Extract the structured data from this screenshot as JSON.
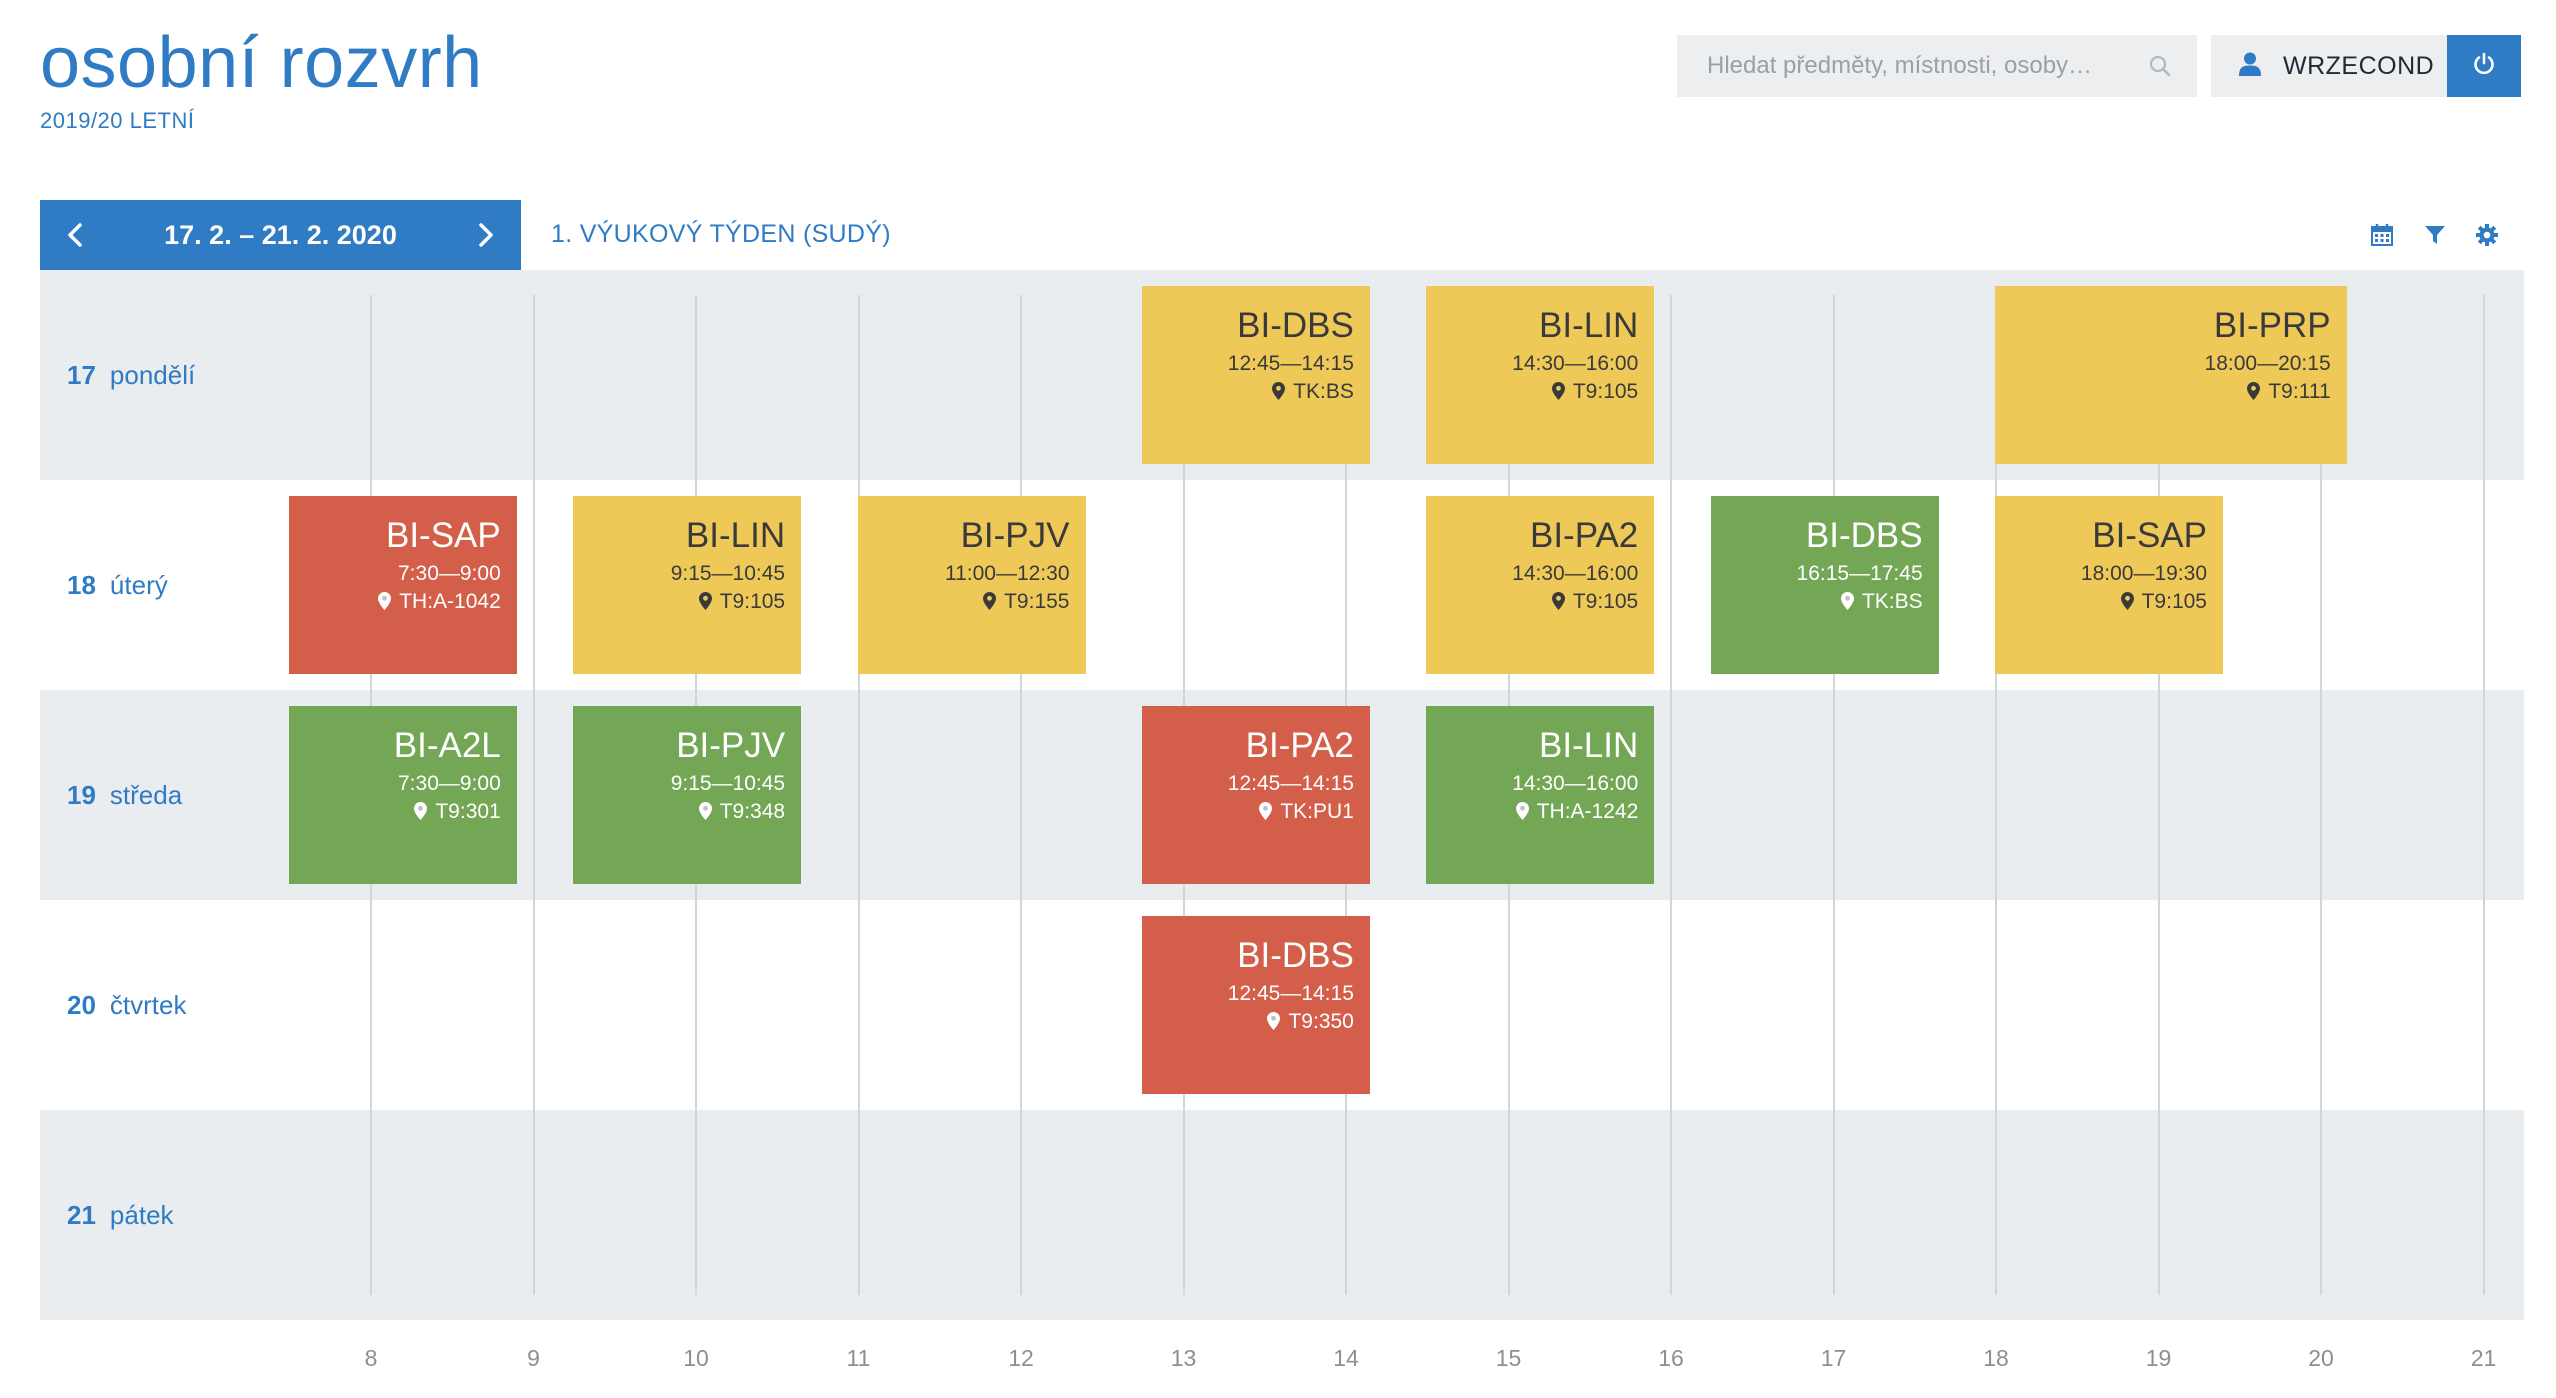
{
  "header": {
    "title": "osobní rozvrh",
    "semester": "2019/20 LETNÍ"
  },
  "search": {
    "placeholder": "Hledat předměty, místnosti, osoby…"
  },
  "user": {
    "username": "WRZECOND"
  },
  "week": {
    "range": "17. 2. – 21. 2. 2020",
    "info": "1. VÝUKOVÝ TÝDEN (SUDÝ)"
  },
  "days": [
    {
      "num": "17",
      "name": "pondělí"
    },
    {
      "num": "18",
      "name": "úterý"
    },
    {
      "num": "19",
      "name": "středa"
    },
    {
      "num": "20",
      "name": "čtvrtek"
    },
    {
      "num": "21",
      "name": "pátek"
    }
  ],
  "hours": [
    "8",
    "9",
    "10",
    "11",
    "12",
    "13",
    "14",
    "15",
    "16",
    "17",
    "18",
    "19",
    "20",
    "21"
  ],
  "events": [
    {
      "day": 0,
      "code": "BI-DBS",
      "time": "12:45—14:15",
      "room": "TK:BS",
      "color": "yellow"
    },
    {
      "day": 0,
      "code": "BI-LIN",
      "time": "14:30—16:00",
      "room": "T9:105",
      "color": "yellow"
    },
    {
      "day": 0,
      "code": "BI-PRP",
      "time": "18:00—20:15",
      "room": "T9:111",
      "color": "yellow"
    },
    {
      "day": 1,
      "code": "BI-SAP",
      "time": "7:30—9:00",
      "room": "TH:A-1042",
      "color": "red"
    },
    {
      "day": 1,
      "code": "BI-LIN",
      "time": "9:15—10:45",
      "room": "T9:105",
      "color": "yellow"
    },
    {
      "day": 1,
      "code": "BI-PJV",
      "time": "11:00—12:30",
      "room": "T9:155",
      "color": "yellow"
    },
    {
      "day": 1,
      "code": "BI-PA2",
      "time": "14:30—16:00",
      "room": "T9:105",
      "color": "yellow"
    },
    {
      "day": 1,
      "code": "BI-DBS",
      "time": "16:15—17:45",
      "room": "TK:BS",
      "color": "green"
    },
    {
      "day": 1,
      "code": "BI-SAP",
      "time": "18:00—19:30",
      "room": "T9:105",
      "color": "yellow"
    },
    {
      "day": 2,
      "code": "BI-A2L",
      "time": "7:30—9:00",
      "room": "T9:301",
      "color": "green"
    },
    {
      "day": 2,
      "code": "BI-PJV",
      "time": "9:15—10:45",
      "room": "T9:348",
      "color": "green"
    },
    {
      "day": 2,
      "code": "BI-PA2",
      "time": "12:45—14:15",
      "room": "TK:PU1",
      "color": "red"
    },
    {
      "day": 2,
      "code": "BI-LIN",
      "time": "14:30—16:00",
      "room": "TH:A-1242",
      "color": "green"
    },
    {
      "day": 3,
      "code": "BI-DBS",
      "time": "12:45—14:15",
      "room": "T9:350",
      "color": "red"
    }
  ],
  "colors": {
    "accent": "#2f7bc4",
    "yellow": "#efc958",
    "red": "#d35f4b",
    "green": "#74a755"
  }
}
